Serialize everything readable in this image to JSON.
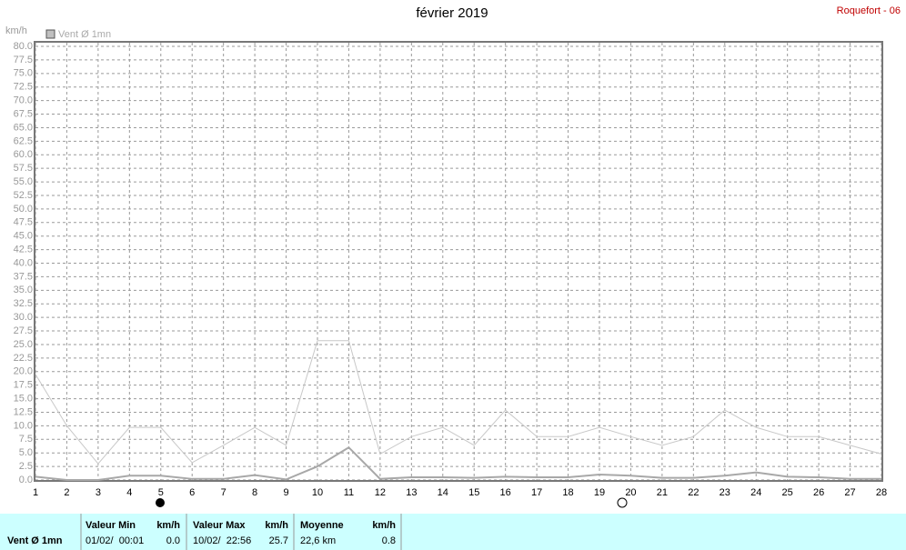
{
  "chart_data": {
    "type": "line",
    "title": "février 2019",
    "station": "Roquefort - 06",
    "y_label": "km/h",
    "legend": "Vent Ø 1mn",
    "legend_color": "#c0c0c0",
    "grid": true,
    "x": [
      1,
      2,
      3,
      4,
      5,
      6,
      7,
      8,
      9,
      10,
      11,
      12,
      13,
      14,
      15,
      16,
      17,
      18,
      19,
      20,
      21,
      22,
      23,
      24,
      25,
      26,
      27,
      28
    ],
    "xlim": [
      1,
      28
    ],
    "xticks": [
      1,
      2,
      3,
      4,
      5,
      6,
      7,
      8,
      9,
      10,
      11,
      12,
      13,
      14,
      15,
      16,
      17,
      18,
      19,
      20,
      21,
      22,
      23,
      24,
      25,
      26,
      27,
      28
    ],
    "ylim": [
      0,
      80
    ],
    "yticks": [
      {
        "value": 0,
        "label": "0.0"
      },
      {
        "value": 2.5,
        "label": "2.5"
      },
      {
        "value": 5,
        "label": "5.0"
      },
      {
        "value": 7.5,
        "label": "7.5"
      },
      {
        "value": 10,
        "label": "10.0"
      },
      {
        "value": 12.5,
        "label": "12.5"
      },
      {
        "value": 15,
        "label": "15.0"
      },
      {
        "value": 17.5,
        "label": "17.5"
      },
      {
        "value": 20,
        "label": "20.0"
      },
      {
        "value": 22.5,
        "label": "22.5"
      },
      {
        "value": 25,
        "label": "25.0"
      },
      {
        "value": 27.5,
        "label": "27.5"
      },
      {
        "value": 30,
        "label": "30.0"
      },
      {
        "value": 32.5,
        "label": "32.5"
      },
      {
        "value": 35,
        "label": "35.0"
      },
      {
        "value": 37.5,
        "label": "37.5"
      },
      {
        "value": 40,
        "label": "40.0"
      },
      {
        "value": 42.5,
        "label": "42.5"
      },
      {
        "value": 45,
        "label": "45.0"
      },
      {
        "value": 47.5,
        "label": "47.5"
      },
      {
        "value": 50,
        "label": "50.0"
      },
      {
        "value": 52.5,
        "label": "52.5"
      },
      {
        "value": 55,
        "label": "55.0"
      },
      {
        "value": 57.5,
        "label": "57.5"
      },
      {
        "value": 60,
        "label": "60.0"
      },
      {
        "value": 62.5,
        "label": "62.5"
      },
      {
        "value": 65,
        "label": "65.0"
      },
      {
        "value": 67.5,
        "label": "67.5"
      },
      {
        "value": 70,
        "label": "70.0"
      },
      {
        "value": 72.5,
        "label": "72.5"
      },
      {
        "value": 75,
        "label": "75.0"
      },
      {
        "value": 77.5,
        "label": "77.5"
      },
      {
        "value": 80,
        "label": "80.0"
      }
    ],
    "series": [
      {
        "color": "#c8c8c8",
        "values": [
          19.5,
          10,
          3,
          9.7,
          9.7,
          3.2,
          6.4,
          9.7,
          6.4,
          25.7,
          25.7,
          4.8,
          8,
          9.7,
          6.4,
          12.9,
          8,
          8,
          9.7,
          8,
          6.4,
          8,
          12.9,
          9.7,
          8,
          8,
          6.4,
          4.8
        ]
      },
      {
        "color": "#a8a8a8",
        "values": [
          0.6,
          0,
          0,
          0.8,
          0.8,
          0.2,
          0.2,
          0.9,
          0.1,
          2.5,
          6,
          0.2,
          0.5,
          0.5,
          0.4,
          0.6,
          0.5,
          0.5,
          1,
          0.8,
          0.4,
          0.4,
          0.8,
          1.4,
          0.6,
          0.5,
          0.2,
          0.2
        ]
      }
    ]
  },
  "table": {
    "label": "Vent Ø 1mn",
    "columns": [
      {
        "title": "Valeur Min",
        "unit": "km/h",
        "when": "01/02/  00:01",
        "value": "0.0"
      },
      {
        "title": "Valeur Max",
        "unit": "km/h",
        "when": "10/02/  22:56",
        "value": "25.7"
      },
      {
        "title": "Moyenne",
        "unit": "km/h",
        "when": "22,6 km",
        "value": "0.8"
      }
    ]
  }
}
